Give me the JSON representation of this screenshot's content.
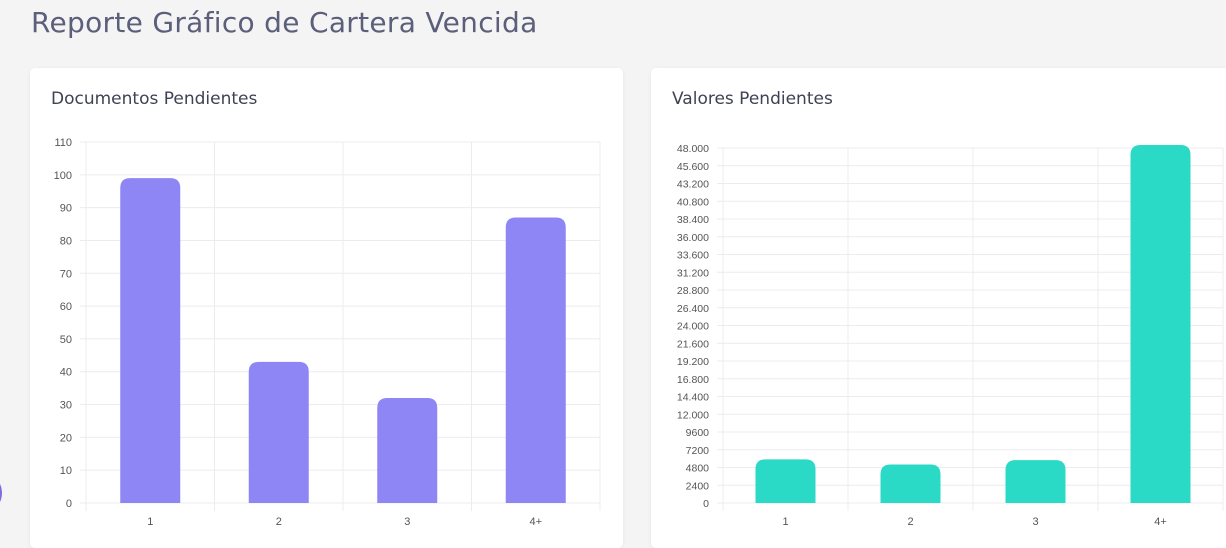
{
  "page": {
    "title": "Reporte Gráfico de Cartera Vencida"
  },
  "chart_data": [
    {
      "type": "bar",
      "title": "Documentos Pendientes",
      "categories": [
        "1",
        "2",
        "3",
        "4+"
      ],
      "values": [
        99,
        43,
        32,
        87
      ],
      "ylim": [
        0,
        110
      ],
      "yticks": [
        0,
        10,
        20,
        30,
        40,
        50,
        60,
        70,
        80,
        90,
        100,
        110
      ],
      "ytick_labels": [
        "0",
        "10",
        "20",
        "30",
        "40",
        "50",
        "60",
        "70",
        "80",
        "90",
        "100",
        "110"
      ],
      "color": "#8e86f5",
      "grid": true
    },
    {
      "type": "bar",
      "title": "Valores Pendientes",
      "categories": [
        "1",
        "2",
        "3",
        "4+"
      ],
      "values": [
        5900,
        5200,
        5800,
        49600
      ],
      "ylim": [
        0,
        48000
      ],
      "yticks": [
        0,
        2400,
        4800,
        7200,
        9600,
        12000,
        14400,
        16800,
        19200,
        21600,
        24000,
        26400,
        28800,
        31200,
        33600,
        36000,
        38400,
        40800,
        43200,
        45600,
        48000
      ],
      "ytick_labels": [
        "0",
        "2400",
        "4800",
        "7200",
        "9600",
        "12.000",
        "14.400",
        "16.800",
        "19.200",
        "21.600",
        "24.000",
        "26.400",
        "28.800",
        "31.200",
        "33.600",
        "36.000",
        "38.400",
        "40.800",
        "43.200",
        "45.600",
        "48.000"
      ],
      "color": "#2ad9c6",
      "grid": true
    }
  ]
}
